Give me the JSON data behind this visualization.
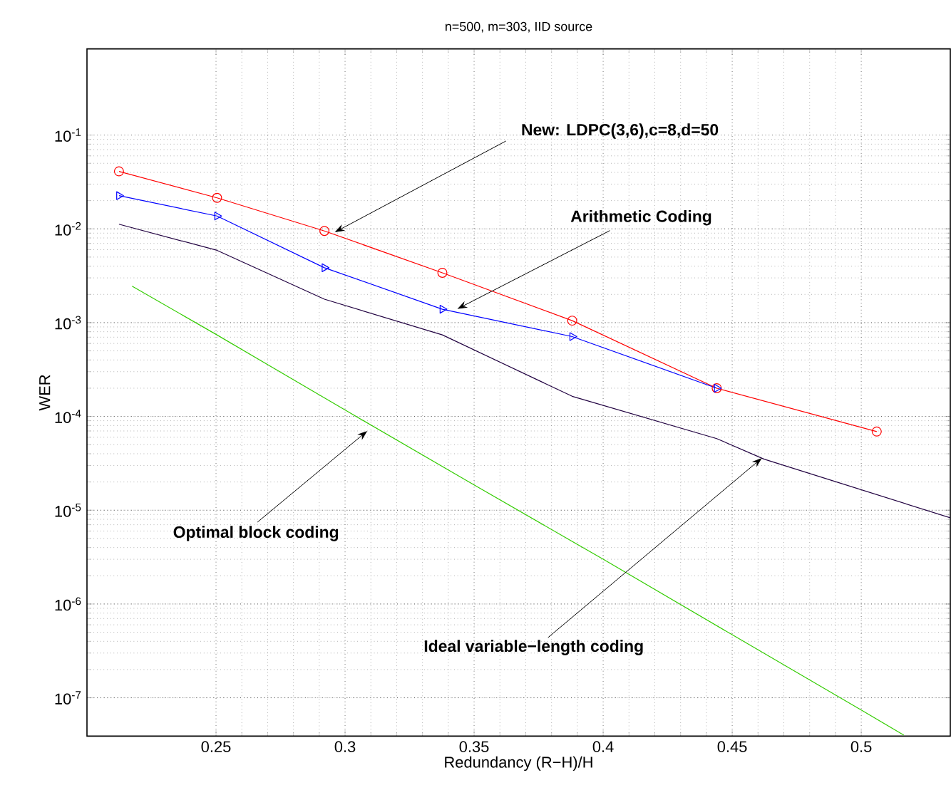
{
  "chart_data": {
    "type": "line",
    "title": "n=500, m=303, IID source",
    "xlabel": "Redundancy (R−H)/H",
    "ylabel": "WER",
    "xlim": [
      0.2,
      0.5345
    ],
    "ylim": [
      3.9e-08,
      0.83
    ],
    "log": "y",
    "grid": true,
    "line_style": "solid",
    "xticks": [
      0.25,
      0.3,
      0.35,
      0.4,
      0.45,
      0.5
    ],
    "yticks": [
      {
        "value": 1e-07,
        "label": "10$^{-7}$"
      },
      {
        "value": 1e-06,
        "label": "10$^{-6}$"
      },
      {
        "value": 1e-05,
        "label": "10$^{-5}$"
      },
      {
        "value": 0.0001,
        "label": "10$^{-4}$"
      },
      {
        "value": 0.001,
        "label": "10$^{-3}$"
      },
      {
        "value": 0.01,
        "label": "10$^{-2}$"
      },
      {
        "value": 0.1,
        "label": "10$^{-1}$"
      }
    ],
    "series": [
      {
        "color": "#ff0000",
        "marker": "circle",
        "x": [
          0.2124,
          0.2504,
          0.292,
          0.3377,
          0.388,
          0.444,
          0.506
        ],
        "values": [
          0.041,
          0.0214,
          0.0095,
          0.0034,
          0.00105,
          0.0002,
          6.9e-05
        ]
      },
      {
        "color": "#0000ff",
        "marker": "triangle",
        "x": [
          0.2124,
          0.2504,
          0.292,
          0.3377,
          0.388,
          0.444
        ],
        "values": [
          0.0226,
          0.0137,
          0.00385,
          0.00139,
          0.00071,
          0.0002
        ]
      },
      {
        "color": "#200040",
        "marker": "none",
        "x": [
          0.2124,
          0.2504,
          0.292,
          0.3377,
          0.388,
          0.444,
          0.4624,
          0.5345
        ],
        "values": [
          0.0112,
          0.0059,
          0.00178,
          0.00074,
          0.000164,
          5.8e-05,
          3.5e-05,
          8.3e-06
        ]
      },
      {
        "color": "#33cc00",
        "marker": "none",
        "x": [
          0.2175,
          0.25,
          0.3,
          0.35,
          0.4,
          0.45,
          0.5,
          0.5165
        ],
        "values": [
          0.00245,
          0.00075,
          0.000117,
          1.86e-05,
          3e-06,
          4.7e-07,
          7.4e-08,
          4e-08
        ]
      }
    ],
    "annotations": [
      {
        "text": "New: LDPC(3,6),c=8,d=50",
        "x": 0.296,
        "y": 0.0092
      },
      {
        "text": "Arithmetic Coding",
        "x": 0.3435,
        "y": 0.0014
      },
      {
        "text": "Optimal block coding",
        "x": 0.3086,
        "y": 7e-05
      },
      {
        "text": "Ideal variable−length coding",
        "x": 0.4615,
        "y": 3.6e-05
      }
    ]
  }
}
